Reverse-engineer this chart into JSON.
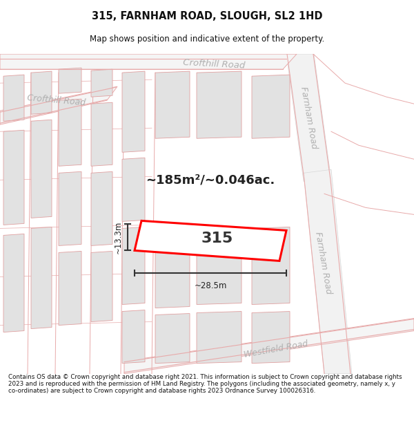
{
  "title_line1": "315, FARNHAM ROAD, SLOUGH, SL2 1HD",
  "title_line2": "Map shows position and indicative extent of the property.",
  "footer_text": "Contains OS data © Crown copyright and database right 2021. This information is subject to Crown copyright and database rights 2023 and is reproduced with the permission of HM Land Registry. The polygons (including the associated geometry, namely x, y co-ordinates) are subject to Crown copyright and database rights 2023 Ordnance Survey 100026316.",
  "map_bg": "#f8f8f8",
  "road_fill": "#ffffff",
  "road_edge": "#e8aaaa",
  "block_fill": "#e2e2e2",
  "block_edge": "#e0a0a0",
  "farnham_fill": "#f0f0f0",
  "farnham_edge": "#d0d0d0",
  "highlight_color": "#ff0000",
  "highlight_fill": "#ffffff",
  "measure_color": "#333333",
  "road_label_color": "#b0b0b0",
  "area_text": "~185m²/~0.046ac.",
  "property_label": "315",
  "width_label": "~28.5m",
  "height_label": "~13.3m"
}
